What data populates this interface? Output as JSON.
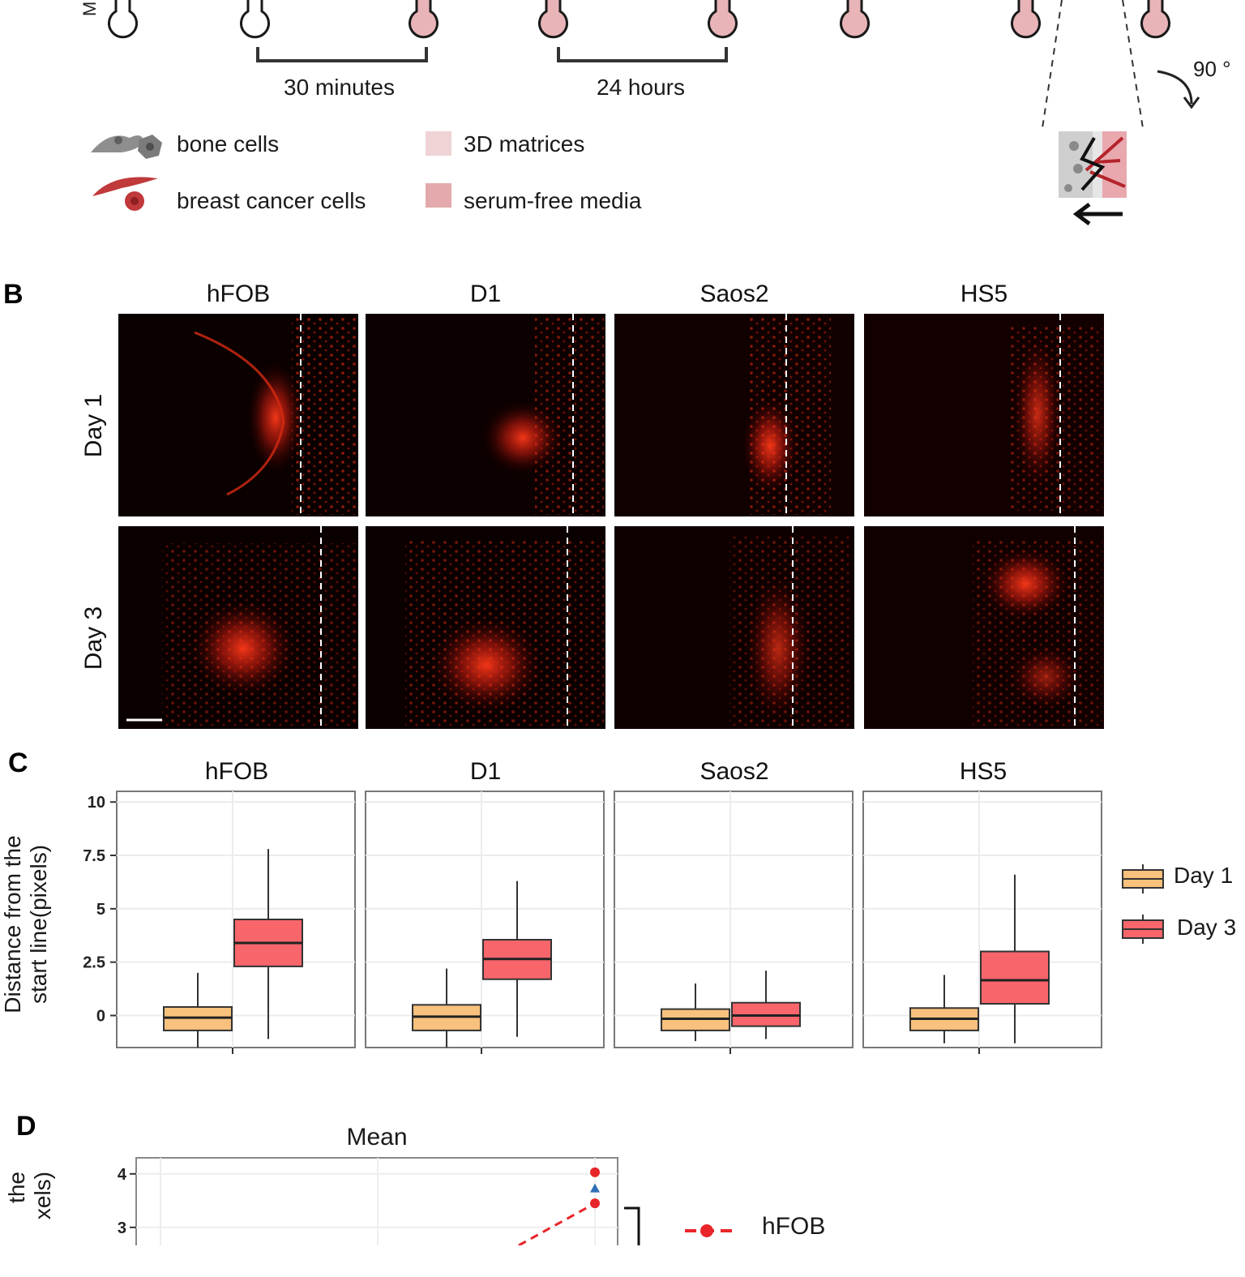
{
  "panelA": {
    "interval1": "30 minutes",
    "interval2": "24 hours",
    "rotation": "90 °",
    "legend": {
      "bone_cells": "bone cells",
      "breast_cancer_cells": "breast cancer cells",
      "matrices": "3D matrices",
      "media": "serum-free  media"
    },
    "colors": {
      "media": "#e8b4b8",
      "matrix": "#efd3d5",
      "cancer": "#c0393b",
      "bone": "#8a8a8a"
    }
  },
  "panelB": {
    "letter": "B",
    "columns": [
      "hFOB",
      "D1",
      "Saos2",
      "HS5"
    ],
    "rows": [
      "Day 1",
      "Day 3"
    ]
  },
  "panelC": {
    "letter": "C",
    "ylabel_line1": "Distance from the",
    "ylabel_line2": "start line(pixels)",
    "legend": [
      "Day 1",
      "Day 3"
    ]
  },
  "panelD": {
    "letter": "D",
    "title": "Mean",
    "legend_hfob": "hFOB",
    "ylabel_line1": "the",
    "ylabel_line2": "xels)"
  },
  "chart_data": [
    {
      "type": "box",
      "facets": [
        "hFOB",
        "D1",
        "Saos2",
        "HS5"
      ],
      "series": [
        {
          "name": "Day 1",
          "color": "#f8c17d"
        },
        {
          "name": "Day 3",
          "color": "#f8656b"
        }
      ],
      "ylim": [
        -1.5,
        10.5
      ],
      "yticks": [
        "10",
        "7.5",
        "5",
        "2.5",
        "0"
      ],
      "ytick_values": [
        10,
        7.5,
        5,
        2.5,
        0
      ],
      "boxes": [
        {
          "facet": "hFOB",
          "series": "Day 1",
          "min": -1.5,
          "q1": -0.7,
          "median": -0.1,
          "q3": 0.4,
          "max": 2.0
        },
        {
          "facet": "hFOB",
          "series": "Day 3",
          "min": -1.1,
          "q1": 2.3,
          "median": 3.4,
          "q3": 4.5,
          "max": 7.8
        },
        {
          "facet": "D1",
          "series": "Day 1",
          "min": -1.5,
          "q1": -0.7,
          "median": -0.05,
          "q3": 0.5,
          "max": 2.2
        },
        {
          "facet": "D1",
          "series": "Day 3",
          "min": -1.0,
          "q1": 1.7,
          "median": 2.65,
          "q3": 3.55,
          "max": 6.3
        },
        {
          "facet": "Saos2",
          "series": "Day 1",
          "min": -1.2,
          "q1": -0.7,
          "median": -0.15,
          "q3": 0.3,
          "max": 1.5
        },
        {
          "facet": "Saos2",
          "series": "Day 3",
          "min": -1.1,
          "q1": -0.5,
          "median": 0.0,
          "q3": 0.6,
          "max": 2.1
        },
        {
          "facet": "HS5",
          "series": "Day 1",
          "min": -1.3,
          "q1": -0.7,
          "median": -0.15,
          "q3": 0.35,
          "max": 1.9
        },
        {
          "facet": "HS5",
          "series": "Day 3",
          "min": -1.3,
          "q1": 0.55,
          "median": 1.65,
          "q3": 3.0,
          "max": 6.6
        }
      ]
    },
    {
      "type": "line",
      "title": "Mean",
      "ylim": [
        2.3,
        4.3
      ],
      "yticks": [
        "4",
        "3"
      ],
      "ytick_values": [
        4,
        3
      ],
      "visible_points": [
        {
          "series": "hFOB",
          "marker": "circle",
          "color": "#e8252a",
          "y": 4.03
        },
        {
          "series": "other",
          "marker": "triangle",
          "color": "#2f6fb5",
          "y": 3.73
        },
        {
          "series": "hFOB",
          "marker": "circle",
          "color": "#e8252a",
          "y": 3.45
        }
      ]
    }
  ]
}
